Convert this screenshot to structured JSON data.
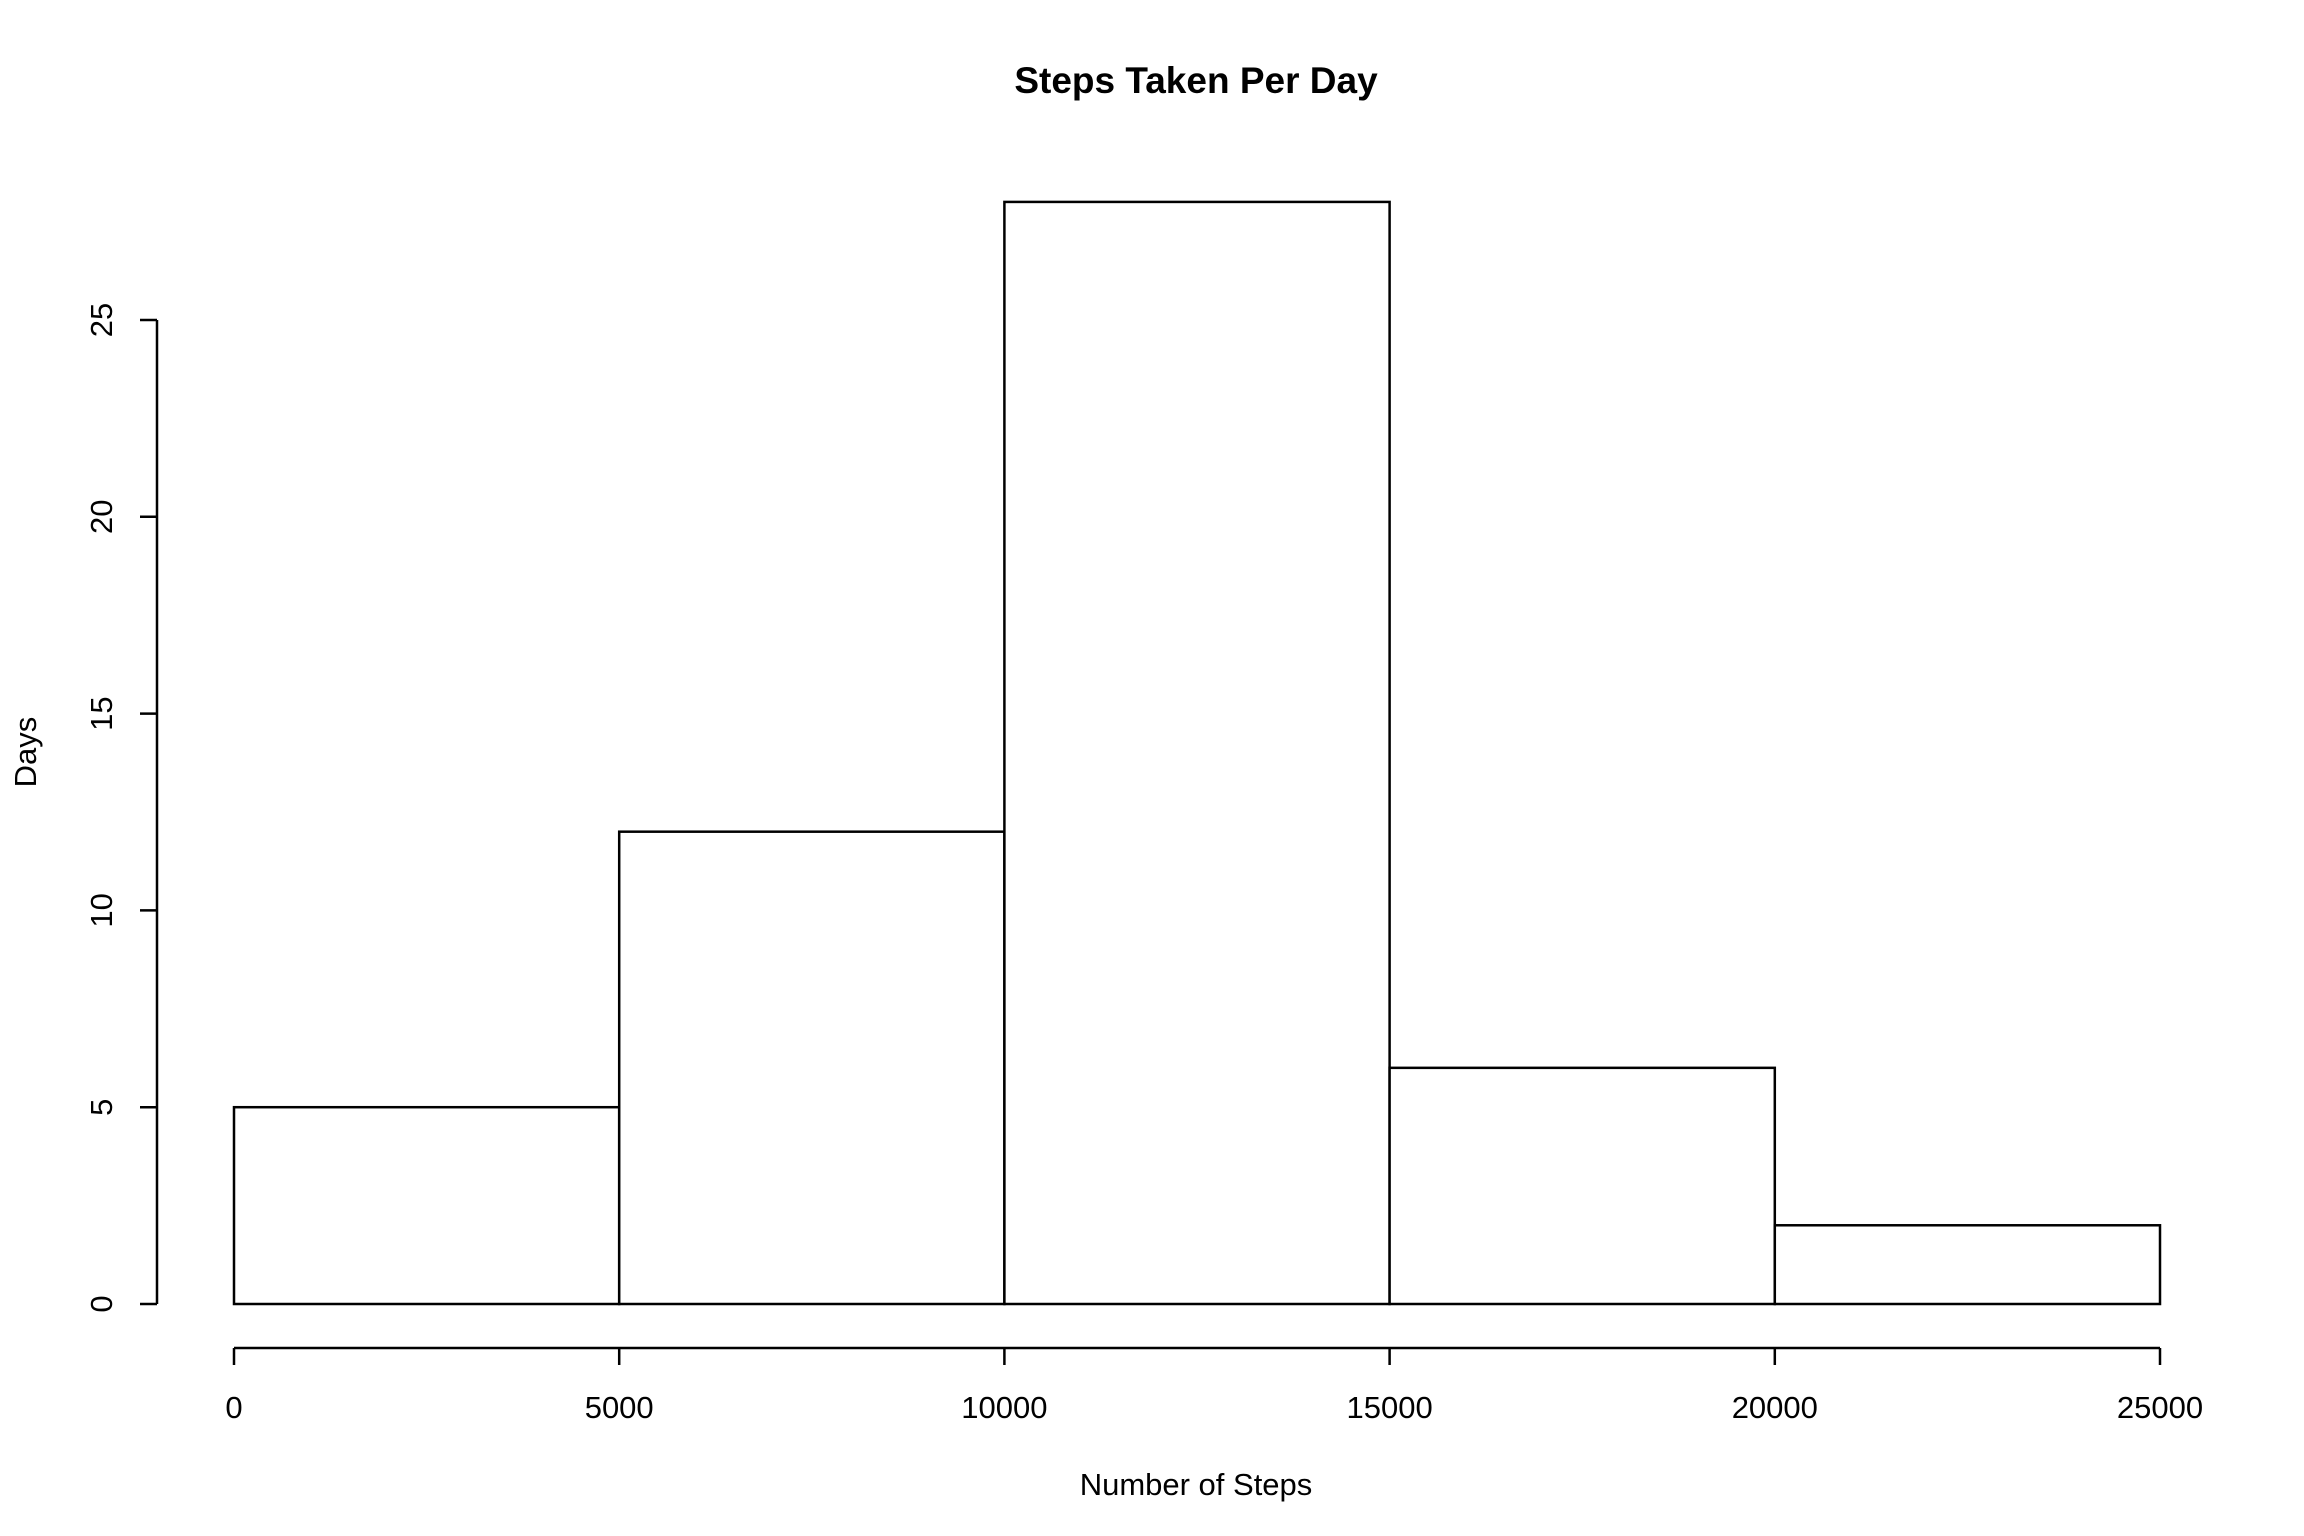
{
  "chart_data": {
    "type": "bar",
    "title": "Steps Taken Per Day",
    "xlabel": "Number of Steps",
    "ylabel": "Days",
    "bins": [
      {
        "from": 0,
        "to": 5000,
        "count": 5
      },
      {
        "from": 5000,
        "to": 10000,
        "count": 12
      },
      {
        "from": 10000,
        "to": 15000,
        "count": 28
      },
      {
        "from": 15000,
        "to": 20000,
        "count": 6
      },
      {
        "from": 20000,
        "to": 25000,
        "count": 2
      }
    ],
    "xlim": [
      0,
      25000
    ],
    "ylim": [
      0,
      28
    ],
    "xticks": [
      "0",
      "5000",
      "10000",
      "15000",
      "20000",
      "25000"
    ],
    "yticks": [
      "0",
      "5",
      "10",
      "15",
      "20",
      "25"
    ],
    "bar_fill": "#ffffff",
    "bar_stroke": "#000000",
    "grid": false,
    "legend": "none"
  }
}
